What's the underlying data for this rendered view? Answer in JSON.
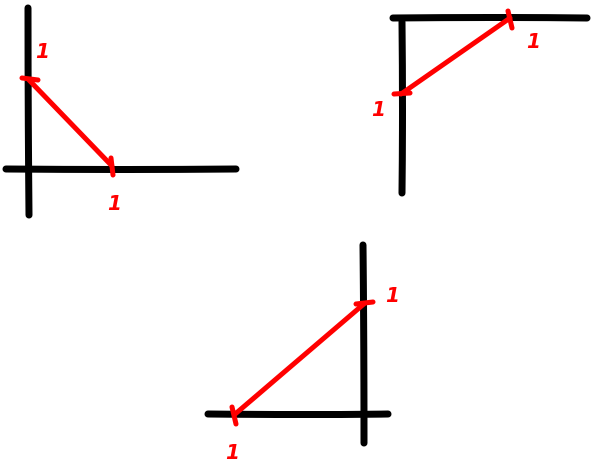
{
  "colors": {
    "axis": "#000000",
    "segment": "#ff0000",
    "background": "#ffffff"
  },
  "sketches": [
    {
      "id": "top-left",
      "tick_labels": {
        "y_axis": "1",
        "x_axis": "1"
      }
    },
    {
      "id": "top-right",
      "tick_labels": {
        "y_axis": "1",
        "x_axis": "1"
      }
    },
    {
      "id": "bottom",
      "tick_labels": {
        "x_axis": "1",
        "y_axis": "1"
      }
    }
  ]
}
